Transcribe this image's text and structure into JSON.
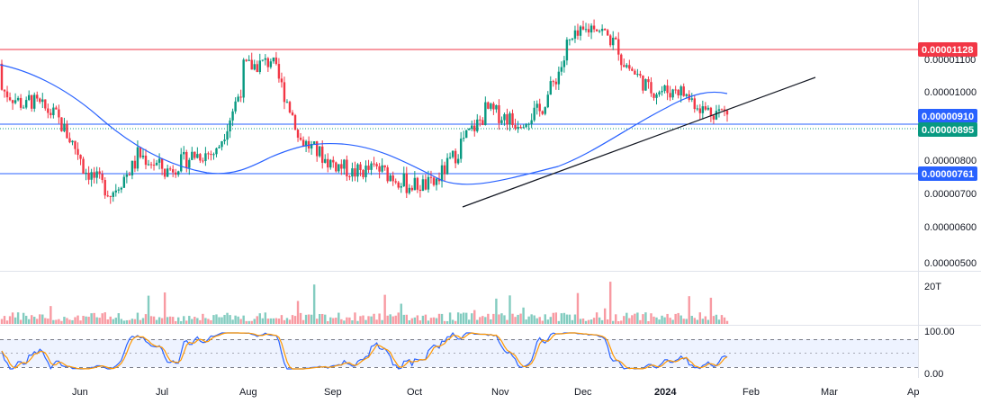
{
  "chart_data": [
    {
      "type": "candlestick",
      "price_axis": {
        "ticks": [
          "0.00001100",
          "0.00001000",
          "0.00000800",
          "0.00000700",
          "0.00000600",
          "0.00000500"
        ],
        "tick_values": [
          1.1e-05,
          1e-05,
          8e-06,
          7e-06,
          6e-06,
          5e-06
        ],
        "range": [
          4.9e-06,
          1.17e-05
        ]
      },
      "time_axis": {
        "labels": [
          "Jun",
          "Jul",
          "Aug",
          "Sep",
          "Oct",
          "Nov",
          "Dec",
          "2024",
          "Feb",
          "Mar",
          "Ap"
        ]
      },
      "horizontal_levels": [
        {
          "value": 1.128e-05,
          "label": "0.00001128",
          "color": "#f23645"
        },
        {
          "value": 9.1e-06,
          "label": "0.00000910",
          "color": "#2962ff"
        },
        {
          "value": 7.61e-06,
          "label": "0.00000761",
          "color": "#2962ff"
        }
      ],
      "last_price": {
        "value": 8.95e-06,
        "label": "0.00000895",
        "color": "#089981"
      },
      "trendline": {
        "from": [
          "2023-10-21",
          6.6e-06
        ],
        "to": [
          "2024-02-26",
          1.07e-05
        ],
        "color": "#131722"
      },
      "moving_average": {
        "color": "#2962ff"
      },
      "colors": {
        "up": "#089981",
        "down": "#f23645"
      },
      "ohlc_path": [
        [
          1.01e-05,
          8.8e-06
        ],
        [
          9.7e-06,
          8.7e-06
        ],
        [
          8.7e-06,
          8.9e-06
        ],
        [
          8.1e-06,
          6.9e-06
        ],
        [
          6.5e-06,
          7.1e-06
        ],
        [
          8e-06,
          7.7e-06
        ],
        [
          7.2e-06,
          7.5e-06
        ],
        [
          7.7e-06,
          7.9e-06
        ],
        [
          8e-06,
          7.8e-06
        ],
        [
          9.2e-06,
          1.08e-05
        ],
        [
          1.12e-05,
          9.3e-06
        ],
        [
          8.3e-06,
          8.2e-06
        ],
        [
          8e-06,
          7.4e-06
        ],
        [
          7.2e-06,
          7.5e-06
        ],
        [
          7.4e-06,
          7.5e-06
        ],
        [
          7.2e-06,
          6.9e-06
        ],
        [
          6.7e-06,
          7.3e-06
        ],
        [
          7.8e-06,
          8.3e-06
        ],
        [
          8.8e-06,
          9.1e-06
        ],
        [
          8.7e-06,
          8.5e-06
        ],
        [
          8.3e-06,
          9.4e-06
        ],
        [
          1.04e-05,
          1.07e-05
        ],
        [
          1.11e-05,
          1.12e-05
        ],
        [
          1.03e-05,
          1.02e-05
        ],
        [
          9.8e-06,
          9.1e-06
        ],
        [
          9.7e-06,
          9.4e-06
        ],
        [
          9.1e-06,
          8.8e-06
        ],
        [
          8.9e-06,
          8.9e-06
        ]
      ],
      "volume_axis": {
        "label": "20T"
      }
    },
    {
      "type": "line",
      "indicator": "stochastic",
      "axis": {
        "ticks": [
          "100.00",
          "0.00"
        ],
        "range": [
          0,
          100
        ]
      },
      "bands": [
        80,
        50,
        20
      ],
      "series": [
        {
          "color": "#2962ff"
        },
        {
          "color": "#ff9800"
        }
      ]
    }
  ]
}
